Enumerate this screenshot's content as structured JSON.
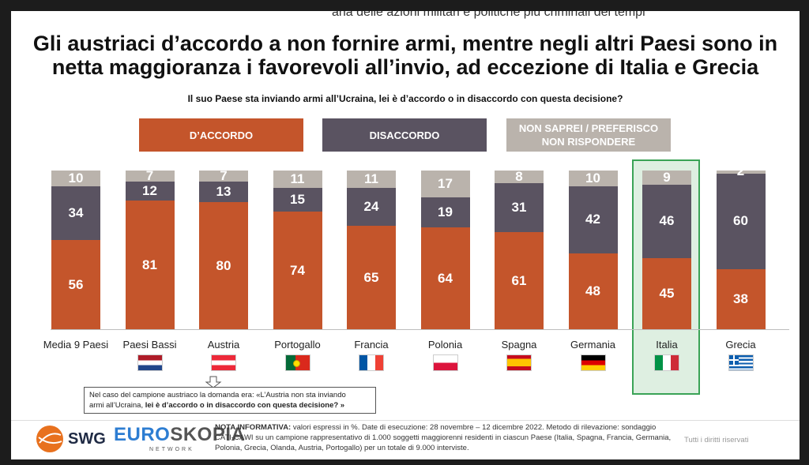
{
  "bleed_text": "ana delle azioni militari e politiche più criminali dei tempi",
  "title_lines": [
    "Gli austriaci d’accordo a non fornire armi, mentre negli altri Paesi sono in",
    "netta maggioranza i favorevoli all’invio, ad eccezione di Italia e Grecia"
  ],
  "question": "Il suo Paese sta inviando armi all’Ucraina, lei è d’accordo o in disaccordo con questa decisione?",
  "legend": [
    {
      "label_lines": [
        "D’ACCORDO"
      ],
      "color": "#c4552b"
    },
    {
      "label_lines": [
        "DISACCORDO"
      ],
      "color": "#5a5361"
    },
    {
      "label_lines": [
        "NON SAPREI / PREFERISCO",
        "NON RISPONDERE"
      ],
      "color": "#bab3ac"
    }
  ],
  "chart_data": {
    "type": "bar",
    "stacked": true,
    "unit": "%",
    "categories": [
      "Media 9 Paesi",
      "Paesi Bassi",
      "Austria",
      "Portogallo",
      "Francia",
      "Polonia",
      "Spagna",
      "Germania",
      "Italia",
      "Grecia"
    ],
    "series": [
      {
        "name": "D’ACCORDO",
        "color": "#c4552b",
        "values": [
          56,
          81,
          80,
          74,
          65,
          64,
          61,
          48,
          45,
          38
        ]
      },
      {
        "name": "DISACCORDO",
        "color": "#5a5361",
        "values": [
          34,
          12,
          13,
          15,
          24,
          19,
          31,
          42,
          46,
          60
        ]
      },
      {
        "name": "NON SAPREI / PREFERISCO NON RISPONDERE",
        "color": "#bab3ac",
        "values": [
          10,
          7,
          7,
          11,
          11,
          17,
          8,
          10,
          9,
          2
        ]
      }
    ],
    "highlighted_category": "Italia",
    "flags": [
      "",
      "netherlands",
      "austria",
      "portugal",
      "france",
      "poland",
      "spain",
      "germany",
      "italy",
      "greece"
    ]
  },
  "note_box": {
    "line1": "Nel caso del campione austriaco la domanda era: «L’Austria non sta inviando",
    "line2_a": "armi all’Ucraina, ",
    "line2_b": "lei è d’accordo o in disaccordo con questa decisione? »"
  },
  "logos": {
    "swg": "SWG",
    "euro_a": "EURO",
    "euro_b": "SKOPIA",
    "network": "NETWORK"
  },
  "nota": {
    "label": "NOTA INFORMATIVA:",
    "text": " valori espressi in %. Date di esecuzione: 28 novembre – 12 dicembre 2022. Metodo di rilevazione: sondaggio CATI-CAWI su un campione rappresentativo di 1.000 soggetti maggiorenni residenti in ciascun Paese (Italia, Spagna, Francia, Germania, Polonia, Grecia, Olanda, Austria, Portogallo) per un totale di 9.000 interviste."
  },
  "rights": "Tutti i diritti riservati"
}
